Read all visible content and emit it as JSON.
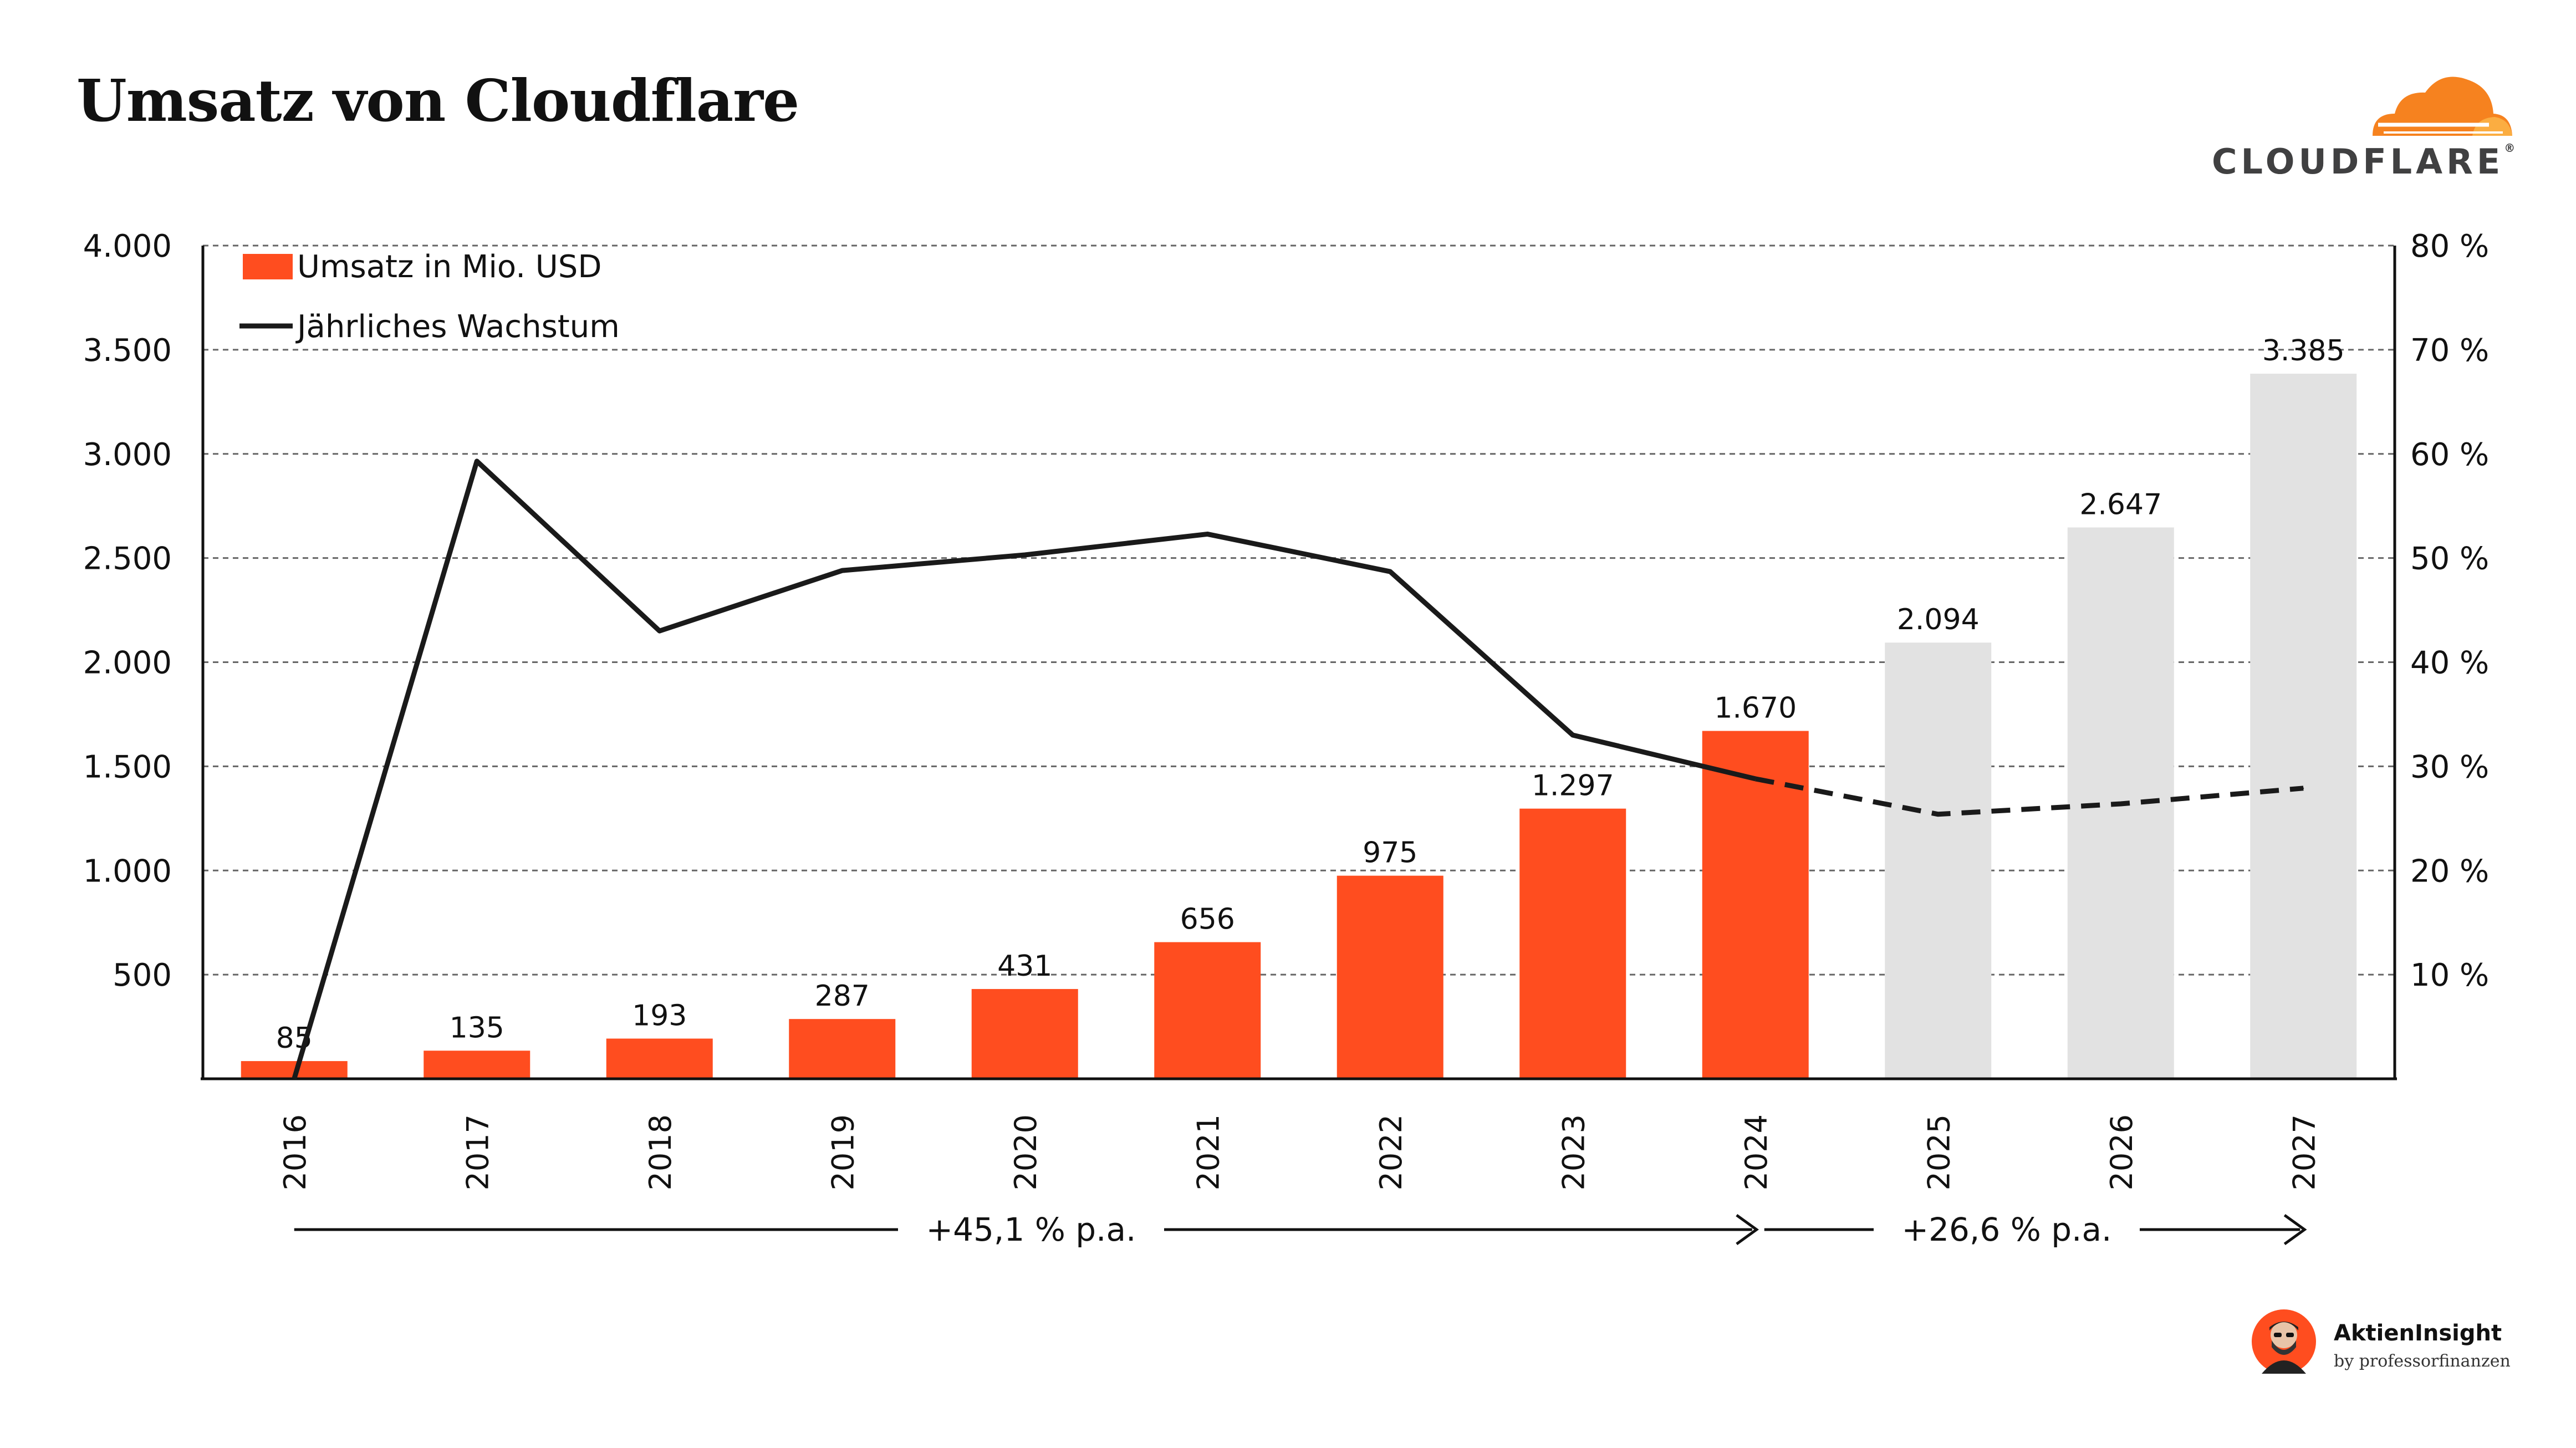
{
  "page": {
    "title": "Umsatz von Cloudflare",
    "logo_text": "CLOUDFLARE",
    "logo_registered": "®",
    "footer_brand": "AktienInsight",
    "footer_sub": "by professorfinanzen"
  },
  "colors": {
    "actual_bar": "#FF4D1F",
    "forecast_bar": "#E2E2E2",
    "line": "#1a1a1a",
    "text": "#111111",
    "logo_orange": "#F6821F",
    "logo_orange_light": "#FBAD41"
  },
  "chart_data": {
    "type": "bar",
    "title": "Umsatz von Cloudflare",
    "categories": [
      "2016",
      "2017",
      "2018",
      "2019",
      "2020",
      "2021",
      "2022",
      "2023",
      "2024",
      "2025",
      "2026",
      "2027"
    ],
    "series": [
      {
        "name": "Umsatz in Mio. USD",
        "type": "bar",
        "values": [
          85,
          135,
          193,
          287,
          431,
          656,
          975,
          1297,
          1670,
          2094,
          2647,
          3385
        ],
        "value_labels": [
          "85",
          "135",
          "193",
          "287",
          "431",
          "656",
          "975",
          "1.297",
          "1.670",
          "2.094",
          "2.647",
          "3.385"
        ],
        "forecast_from_index": 9
      },
      {
        "name": "Jährliches Wachstum",
        "type": "line",
        "axis": "right",
        "values": [
          0,
          59.3,
          43.0,
          48.8,
          50.3,
          52.3,
          48.7,
          33.0,
          28.8,
          25.4,
          26.4,
          27.9
        ],
        "dashed_from_index": 8
      }
    ],
    "y_left": {
      "ylim": [
        0,
        4000
      ],
      "ticks": [
        500,
        1000,
        1500,
        2000,
        2500,
        3000,
        3500,
        4000
      ],
      "tick_labels": [
        "500",
        "1.000",
        "1.500",
        "2.000",
        "2.500",
        "3.000",
        "3.500",
        "4.000"
      ]
    },
    "y_right": {
      "ylim": [
        0,
        80
      ],
      "ticks": [
        10,
        20,
        30,
        40,
        50,
        60,
        70,
        80
      ],
      "tick_labels": [
        "10 %",
        "20 %",
        "30 %",
        "40 %",
        "50 %",
        "60 %",
        "70 %",
        "80 %"
      ]
    },
    "grid": true,
    "legend": {
      "position": "top-left",
      "entries": [
        "Umsatz in Mio. USD",
        "Jährliches Wachstum"
      ]
    },
    "annotations": [
      {
        "text": "+45,1 % p.a.",
        "from": "2016",
        "to": "2024"
      },
      {
        "text": "+26,6 % p.a.",
        "from": "2024",
        "to": "2027"
      }
    ]
  }
}
